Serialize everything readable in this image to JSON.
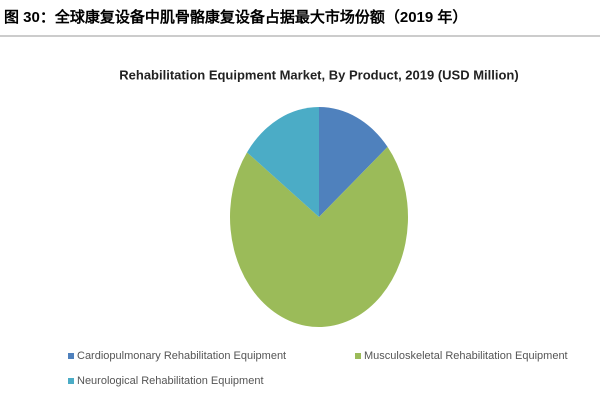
{
  "header": {
    "title": "图 30：全球康复设备中肌骨骼康复设备占据最大市场份额（2019 年）"
  },
  "chart_data": {
    "type": "pie",
    "title": "Rehabilitation  Equipment Market, By Product, 2019 (USD Million)",
    "categories": [
      "Cardiopulmonary Rehabilitation Equipment",
      "Musculoskeletal Rehabilitation Equipment",
      "Neurological Rehabilitation Equipment"
    ],
    "values": [
      14,
      71,
      15
    ],
    "colors": [
      "#4f81bd",
      "#9bbb59",
      "#4bacc6"
    ]
  }
}
